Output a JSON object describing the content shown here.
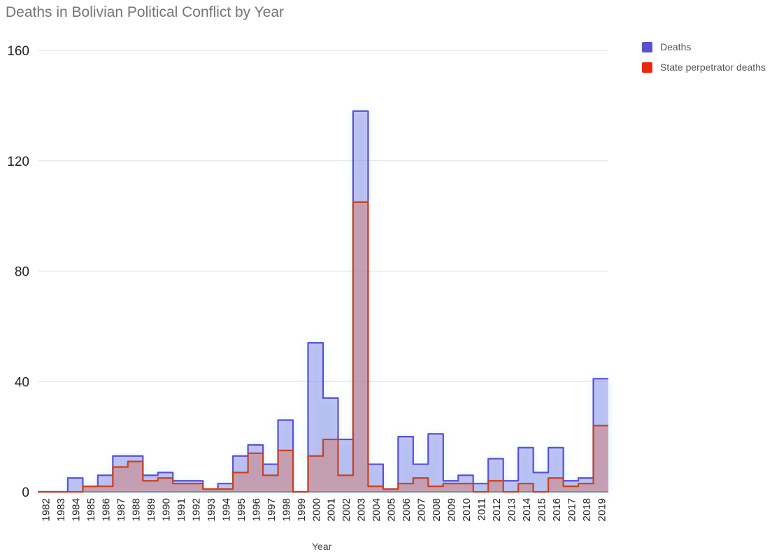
{
  "title": "Deaths in Bolivian Political Conflict by Year",
  "legend": {
    "items": [
      {
        "label": "Deaths",
        "color": "#5b4fd6"
      },
      {
        "label": "State perpetrator deaths",
        "color": "#e8290f"
      }
    ],
    "position": "top-right"
  },
  "chart_data": {
    "type": "area",
    "title": "Deaths in Bolivian Political Conflict by Year",
    "xlabel": "Year",
    "ylabel": "",
    "ylim": [
      0,
      160
    ],
    "yticks": [
      0,
      40,
      80,
      120,
      160
    ],
    "grid": true,
    "categories": [
      "1982",
      "1983",
      "1984",
      "1985",
      "1986",
      "1987",
      "1988",
      "1989",
      "1990",
      "1991",
      "1992",
      "1993",
      "1994",
      "1995",
      "1996",
      "1997",
      "1998",
      "1999",
      "2000",
      "2001",
      "2002",
      "2003",
      "2004",
      "2005",
      "2006",
      "2007",
      "2008",
      "2009",
      "2010",
      "2011",
      "2012",
      "2013",
      "2014",
      "2015",
      "2016",
      "2017",
      "2018",
      "2019"
    ],
    "series": [
      {
        "name": "Deaths",
        "color": "#5b4fd6",
        "values": [
          0,
          0,
          5,
          2,
          6,
          13,
          13,
          6,
          7,
          4,
          4,
          1,
          3,
          13,
          17,
          10,
          26,
          0,
          54,
          34,
          19,
          138,
          10,
          1,
          20,
          10,
          21,
          4,
          6,
          3,
          12,
          4,
          16,
          7,
          16,
          4,
          5,
          41
        ]
      },
      {
        "name": "State perpetrator deaths",
        "color": "#e8290f",
        "values": [
          0,
          0,
          0,
          2,
          2,
          9,
          11,
          4,
          5,
          3,
          3,
          1,
          1,
          7,
          14,
          6,
          15,
          0,
          13,
          19,
          6,
          105,
          2,
          1,
          3,
          5,
          2,
          3,
          3,
          0,
          4,
          0,
          3,
          0,
          5,
          2,
          3,
          24
        ]
      }
    ]
  }
}
